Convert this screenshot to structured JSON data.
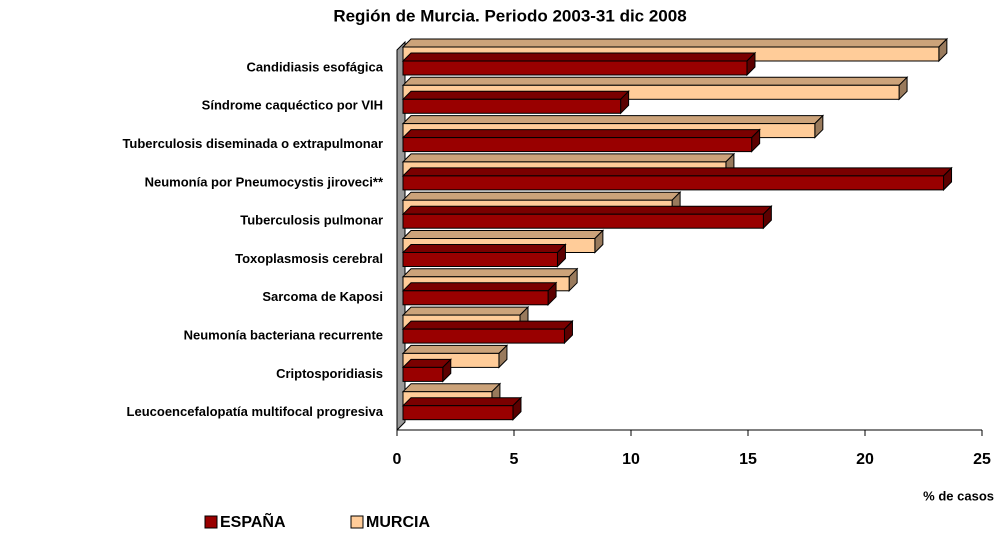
{
  "chart_data": {
    "type": "bar3d_horizontal",
    "title": "Región de Murcia. Periodo 2003-31 dic 2008",
    "x_label": "% de casos",
    "categories": [
      "Candidiasis esofágica",
      "Síndrome caquéctico por VIH",
      "Tuberculosis diseminada o extrapulmonar",
      "Neumonía por Pneumocystis jiroveci**",
      "Tuberculosis pulmonar",
      "Toxoplasmosis cerebral",
      "Sarcoma de Kaposi",
      "Neumonía bacteriana recurrente",
      "Criptosporidiasis",
      "Leucoencefalopatía multifocal progresiva"
    ],
    "series": [
      {
        "name": "ESPAÑA",
        "color": "#990000",
        "values": [
          14.7,
          9.3,
          14.9,
          23.1,
          15.4,
          6.6,
          6.2,
          6.9,
          1.7,
          4.7
        ]
      },
      {
        "name": "MURCIA",
        "color": "#ffcc99",
        "values": [
          22.9,
          21.2,
          17.6,
          13.8,
          11.5,
          8.2,
          7.1,
          5.0,
          4.1,
          3.8
        ]
      }
    ],
    "xlim": [
      0,
      25
    ],
    "xticks": [
      0,
      5,
      10,
      15,
      20,
      25
    ],
    "legend": "bottom"
  }
}
